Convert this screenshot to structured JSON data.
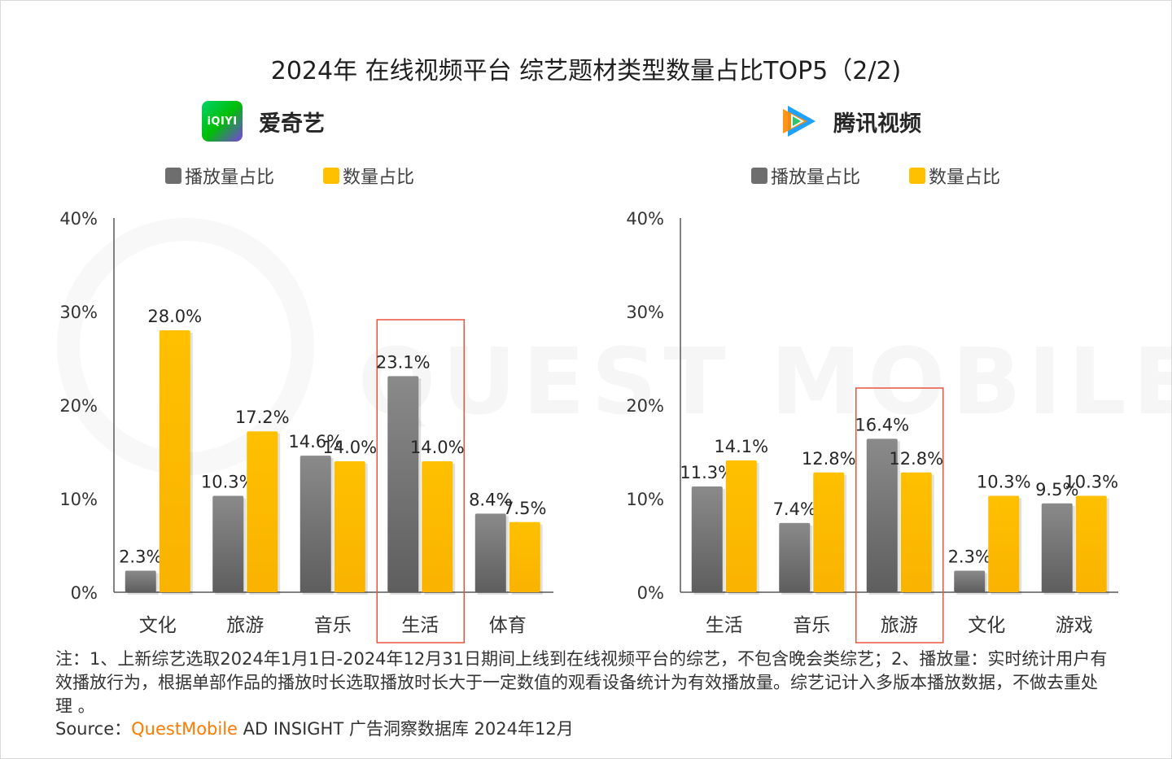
{
  "title": "2024年 在线视频平台 综艺题材类型数量占比TOP5（2/2)",
  "watermark": "QUEST MOBILE",
  "colors": {
    "playback": "#7a7a7a",
    "count": "#ffc000",
    "highlight": "#e8553e",
    "axis": "#404040"
  },
  "left_brand": {
    "logo_text": "iQIYI",
    "name": "爱奇艺"
  },
  "right_brand": {
    "name": "腾讯视频"
  },
  "legend": {
    "playback": "播放量占比",
    "count": "数量占比"
  },
  "chart_data": [
    {
      "type": "bar",
      "platform": "爱奇艺",
      "categories": [
        "文化",
        "旅游",
        "音乐",
        "生活",
        "体育"
      ],
      "series": [
        {
          "name": "播放量占比",
          "values": [
            2.3,
            10.3,
            14.6,
            23.1,
            8.4
          ],
          "labels": [
            "2.3%",
            "10.3%",
            "14.6%",
            "23.1%",
            "8.4%"
          ]
        },
        {
          "name": "数量占比",
          "values": [
            28.0,
            17.2,
            14.0,
            14.0,
            7.5
          ],
          "labels": [
            "28.0%",
            "17.2%",
            "14.0%",
            "14.0%",
            "7.5%"
          ]
        }
      ],
      "yticks": [
        "0%",
        "10%",
        "20%",
        "30%",
        "40%"
      ],
      "ylim": [
        0,
        40
      ],
      "highlight_category": "生活"
    },
    {
      "type": "bar",
      "platform": "腾讯视频",
      "categories": [
        "生活",
        "音乐",
        "旅游",
        "文化",
        "游戏"
      ],
      "series": [
        {
          "name": "播放量占比",
          "values": [
            11.3,
            7.4,
            16.4,
            2.3,
            9.5
          ],
          "labels": [
            "11.3%",
            "7.4%",
            "16.4%",
            "2.3%",
            "9.5%"
          ]
        },
        {
          "name": "数量占比",
          "values": [
            14.1,
            12.8,
            12.8,
            10.3,
            10.3
          ],
          "labels": [
            "14.1%",
            "12.8%",
            "12.8%",
            "10.3%",
            "10.3%"
          ]
        }
      ],
      "yticks": [
        "0%",
        "10%",
        "20%",
        "30%",
        "40%"
      ],
      "ylim": [
        0,
        40
      ],
      "highlight_category": "旅游"
    }
  ],
  "notes": "注：1、上新综艺选取2024年1月1日-2024年12月31日期间上线到在线视频平台的综艺，不包含晚会类综艺；2、播放量：实时统计用户有效播放行为，根据单部作品的播放时长选取播放时长大于一定数值的观看设备统计为有效播放量。综艺记计入多版本播放数据，不做去重处理 。",
  "source": {
    "prefix": "Source：",
    "brand": "QuestMobile",
    "suffix": " AD INSIGHT 广告洞察数据库 2024年12月"
  }
}
